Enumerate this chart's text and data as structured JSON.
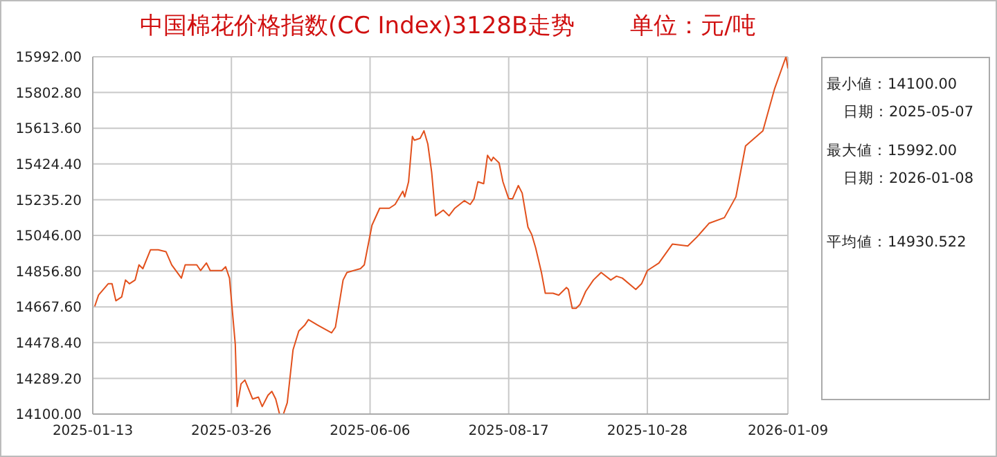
{
  "chart_data": {
    "type": "line",
    "title": "中国棉花价格指数(CC Index)3128B走势",
    "subtitle": "单位：元/吨",
    "annotations": [
      "最小値：14100.00",
      "日期：2025-05-07",
      "最大値：15992.00",
      "日期：2026-01-08",
      "平均値：14930.522"
    ],
    "x": [
      "2025-01-14",
      "2025-01-16",
      "2025-01-21",
      "2025-01-23",
      "2025-01-25",
      "2025-01-28",
      "2025-01-30",
      "2025-02-01",
      "2025-02-04",
      "2025-02-06",
      "2025-02-08",
      "2025-02-12",
      "2025-02-16",
      "2025-02-20",
      "2025-02-23",
      "2025-02-28",
      "2025-03-02",
      "2025-03-08",
      "2025-03-10",
      "2025-03-13",
      "2025-03-15",
      "2025-03-21",
      "2025-03-23",
      "2025-03-25",
      "2025-03-28",
      "2025-03-29",
      "2025-03-31",
      "2025-04-02",
      "2025-04-06",
      "2025-04-09",
      "2025-04-11",
      "2025-04-14",
      "2025-04-16",
      "2025-04-18",
      "2025-04-20",
      "2025-04-22",
      "2025-04-24",
      "2025-04-27",
      "2025-04-30",
      "2025-05-03",
      "2025-05-05",
      "2025-05-10",
      "2025-05-17",
      "2025-05-19",
      "2025-05-23",
      "2025-05-25",
      "2025-06-01",
      "2025-06-03",
      "2025-06-07",
      "2025-06-11",
      "2025-06-16",
      "2025-06-19",
      "2025-06-23",
      "2025-06-24",
      "2025-06-26",
      "2025-06-28",
      "2025-06-29",
      "2025-07-02",
      "2025-07-04",
      "2025-07-06",
      "2025-07-08",
      "2025-07-10",
      "2025-07-14",
      "2025-07-17",
      "2025-07-20",
      "2025-07-25",
      "2025-07-28",
      "2025-07-30",
      "2025-08-01",
      "2025-08-04",
      "2025-08-06",
      "2025-08-08",
      "2025-08-09",
      "2025-08-12",
      "2025-08-14",
      "2025-08-17",
      "2025-08-19",
      "2025-08-22",
      "2025-08-24",
      "2025-08-27",
      "2025-08-29",
      "2025-08-31",
      "2025-09-03",
      "2025-09-05",
      "2025-09-09",
      "2025-09-12",
      "2025-09-16",
      "2025-09-17",
      "2025-09-19",
      "2025-09-21",
      "2025-09-23",
      "2025-09-26",
      "2025-09-30",
      "2025-10-04",
      "2025-10-09",
      "2025-10-12",
      "2025-10-15",
      "2025-10-22",
      "2025-10-25",
      "2025-10-28",
      "2025-11-03",
      "2025-11-10",
      "2025-11-18",
      "2025-11-23",
      "2025-11-29",
      "2025-12-07",
      "2025-12-13",
      "2025-12-18",
      "2025-12-27",
      "2026-01-02",
      "2026-01-08",
      "2026-01-09"
    ],
    "series": [
      {
        "color": "#e2501c",
        "values": [
          14670,
          14730,
          14790,
          14790,
          14700,
          14720,
          14810,
          14790,
          14810,
          14890,
          14870,
          14970,
          14970,
          14960,
          14890,
          14820,
          14890,
          14890,
          14860,
          14900,
          14860,
          14860,
          14880,
          14820,
          14470,
          14140,
          14260,
          14280,
          14180,
          14190,
          14140,
          14200,
          14220,
          14180,
          14100,
          14100,
          14160,
          14440,
          14540,
          14570,
          14600,
          14570,
          14530,
          14560,
          14810,
          14850,
          14870,
          14890,
          15100,
          15190,
          15190,
          15210,
          15280,
          15250,
          15330,
          15570,
          15550,
          15560,
          15600,
          15530,
          15380,
          15150,
          15180,
          15150,
          15190,
          15230,
          15210,
          15240,
          15330,
          15320,
          15470,
          15440,
          15460,
          15430,
          15330,
          15240,
          15240,
          15310,
          15270,
          15090,
          15050,
          14980,
          14850,
          14740,
          14740,
          14730,
          14770,
          14760,
          14660,
          14660,
          14680,
          14750,
          14810,
          14850,
          14810,
          14830,
          14820,
          14760,
          14790,
          14860,
          14900,
          15000,
          14990,
          15040,
          15110,
          15140,
          15250,
          15520,
          15600,
          15820,
          15992,
          15930
        ]
      }
    ],
    "xlim": [
      "2025-01-13",
      "2026-01-09"
    ],
    "xticks": [
      "2025-01-13",
      "2025-03-26",
      "2025-06-06",
      "2025-08-17",
      "2025-10-28",
      "2026-01-09"
    ],
    "ylim": [
      14100,
      15992
    ],
    "yticks": [
      {
        "value": 14100,
        "label": "14100.00"
      },
      {
        "value": 14289.2,
        "label": "14289.20"
      },
      {
        "value": 14478.4,
        "label": "14478.40"
      },
      {
        "value": 14667.6,
        "label": "14667.60"
      },
      {
        "value": 14856.8,
        "label": "14856.80"
      },
      {
        "value": 15046,
        "label": "15046.00"
      },
      {
        "value": 15235.2,
        "label": "15235.20"
      },
      {
        "value": 15424.4,
        "label": "15424.40"
      },
      {
        "value": 15613.6,
        "label": "15613.60"
      },
      {
        "value": 15802.8,
        "label": "15802.80"
      },
      {
        "value": 15992,
        "label": "15992.00"
      }
    ],
    "grid": true,
    "marker": "none",
    "line_style": "solid"
  }
}
